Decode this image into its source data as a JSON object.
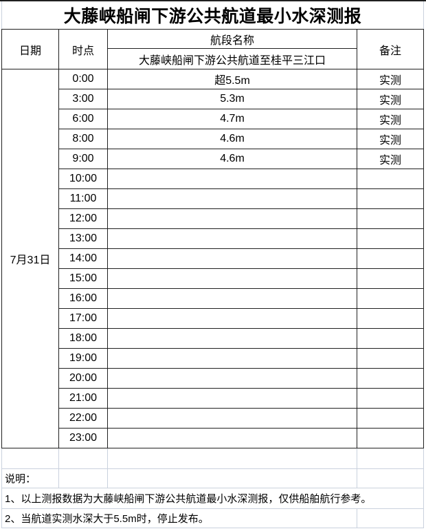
{
  "title": "大藤峡船闸下游公共航道最小水深测报",
  "table": {
    "columns": {
      "date": "日期",
      "time": "时点",
      "segment": "航段名称",
      "remark": "备注"
    },
    "segment_name": "大藤峡船闸下游公共航道至桂平三江口",
    "date": "7月31日",
    "rows": [
      {
        "time": "0:00",
        "depth": "超5.5m",
        "remark": "实测"
      },
      {
        "time": "3:00",
        "depth": "5.3m",
        "remark": "实测"
      },
      {
        "time": "6:00",
        "depth": "4.7m",
        "remark": "实测"
      },
      {
        "time": "8:00",
        "depth": "4.6m",
        "remark": "实测"
      },
      {
        "time": "9:00",
        "depth": "4.6m",
        "remark": "实测"
      },
      {
        "time": "10:00",
        "depth": "",
        "remark": ""
      },
      {
        "time": "11:00",
        "depth": "",
        "remark": ""
      },
      {
        "time": "12:00",
        "depth": "",
        "remark": ""
      },
      {
        "time": "13:00",
        "depth": "",
        "remark": ""
      },
      {
        "time": "14:00",
        "depth": "",
        "remark": ""
      },
      {
        "time": "15:00",
        "depth": "",
        "remark": ""
      },
      {
        "time": "16:00",
        "depth": "",
        "remark": ""
      },
      {
        "time": "17:00",
        "depth": "",
        "remark": ""
      },
      {
        "time": "18:00",
        "depth": "",
        "remark": ""
      },
      {
        "time": "19:00",
        "depth": "",
        "remark": ""
      },
      {
        "time": "20:00",
        "depth": "",
        "remark": ""
      },
      {
        "time": "21:00",
        "depth": "",
        "remark": ""
      },
      {
        "time": "22:00",
        "depth": "",
        "remark": ""
      },
      {
        "time": "23:00",
        "depth": "",
        "remark": ""
      }
    ]
  },
  "notes": {
    "label": "说明：",
    "items": [
      "1、以上测报数据为大藤峡船闸下游公共航道最小水深测报，仅供船舶航行参考。",
      "2、当航道实测水深大于5.5m时，停止发布。"
    ]
  },
  "colors": {
    "border_dark": "#1f1f1f",
    "grid_light": "#c9d1dd"
  }
}
